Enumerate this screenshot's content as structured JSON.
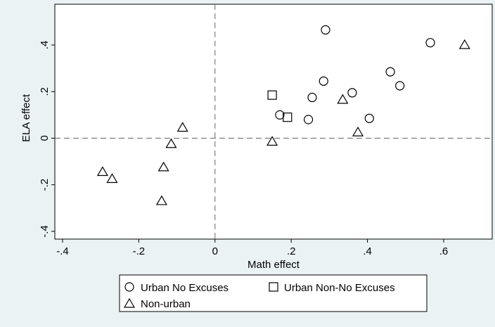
{
  "chart_data": {
    "type": "scatter",
    "xlabel": "Math effect",
    "ylabel": "ELA effect",
    "xlim": [
      -0.4,
      0.7
    ],
    "ylim": [
      -0.4,
      0.5
    ],
    "x_ticks": [
      {
        "value": -0.4,
        "label": "-.4"
      },
      {
        "value": -0.2,
        "label": "-.2"
      },
      {
        "value": 0,
        "label": "0"
      },
      {
        "value": 0.2,
        "label": ".2"
      },
      {
        "value": 0.4,
        "label": ".4"
      },
      {
        "value": 0.6,
        "label": ".6"
      }
    ],
    "y_ticks": [
      {
        "value": -0.4,
        "label": "-.4"
      },
      {
        "value": -0.2,
        "label": "-.2"
      },
      {
        "value": 0,
        "label": "0"
      },
      {
        "value": 0.2,
        "label": ".2"
      },
      {
        "value": 0.4,
        "label": ".4"
      }
    ],
    "grid": false,
    "reference_lines": {
      "x": 0,
      "y": 0,
      "style": "dashed"
    },
    "legend_position": "bottom",
    "series": [
      {
        "name": "Urban No Excuses",
        "marker": "circle",
        "points": [
          {
            "x": 0.29,
            "y": 0.465
          },
          {
            "x": 0.565,
            "y": 0.41
          },
          {
            "x": 0.46,
            "y": 0.285
          },
          {
            "x": 0.485,
            "y": 0.225
          },
          {
            "x": 0.285,
            "y": 0.245
          },
          {
            "x": 0.36,
            "y": 0.195
          },
          {
            "x": 0.255,
            "y": 0.175
          },
          {
            "x": 0.17,
            "y": 0.1
          },
          {
            "x": 0.245,
            "y": 0.08
          },
          {
            "x": 0.405,
            "y": 0.085
          }
        ]
      },
      {
        "name": "Urban Non-No Excuses",
        "marker": "square",
        "points": [
          {
            "x": 0.15,
            "y": 0.185
          },
          {
            "x": 0.19,
            "y": 0.09
          }
        ]
      },
      {
        "name": "Non-urban",
        "marker": "triangle",
        "points": [
          {
            "x": 0.655,
            "y": 0.4
          },
          {
            "x": 0.335,
            "y": 0.165
          },
          {
            "x": 0.375,
            "y": 0.025
          },
          {
            "x": 0.15,
            "y": -0.015
          },
          {
            "x": -0.085,
            "y": 0.045
          },
          {
            "x": -0.115,
            "y": -0.025
          },
          {
            "x": -0.135,
            "y": -0.125
          },
          {
            "x": -0.14,
            "y": -0.27
          },
          {
            "x": -0.295,
            "y": -0.145
          },
          {
            "x": -0.27,
            "y": -0.175
          }
        ]
      }
    ]
  }
}
